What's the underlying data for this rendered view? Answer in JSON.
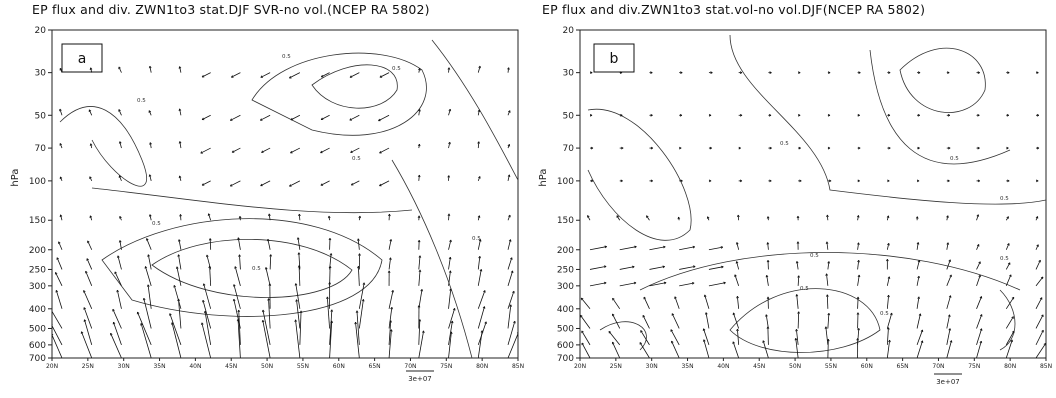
{
  "chart_data": [
    {
      "type": "quiver-contour",
      "panel": "a",
      "title": "EP flux and div. ZWN1to3 stat.DJF SVR-no vol.(NCEP RA 5802)",
      "panel_label": "a",
      "ylabel": "hPa",
      "y_ticks": [
        "20",
        "30",
        "50",
        "70",
        "100",
        "150",
        "200",
        "250",
        "300",
        "400",
        "500",
        "600",
        "700"
      ],
      "x_ticks": [
        "20N",
        "25N",
        "30N",
        "35N",
        "40N",
        "45N",
        "50N",
        "55N",
        "60N",
        "65N",
        "70N",
        "75N",
        "80N",
        "85N"
      ],
      "reference_vector_label": "3e+07",
      "contour_labels": [
        "0.5",
        "0.5",
        "0.5",
        "0.5",
        "0.5",
        "0.5",
        "0.5"
      ]
    },
    {
      "type": "quiver-contour",
      "panel": "b",
      "title": "EP flux and div.ZWN1to3 stat.vol-no vol.DJF(NCEP RA 5802)",
      "panel_label": "b",
      "ylabel": "hPa",
      "y_ticks": [
        "20",
        "30",
        "50",
        "70",
        "100",
        "150",
        "200",
        "250",
        "300",
        "400",
        "500",
        "600",
        "700"
      ],
      "x_ticks": [
        "20N",
        "25N",
        "30N",
        "35N",
        "40N",
        "45N",
        "50N",
        "55N",
        "60N",
        "65N",
        "70N",
        "75N",
        "80N",
        "85N"
      ],
      "reference_vector_label": "3e+07",
      "contour_labels": [
        "0.5",
        "0.5",
        "0.5",
        "0.5",
        "0.5",
        "0.5",
        "0.5"
      ]
    }
  ]
}
